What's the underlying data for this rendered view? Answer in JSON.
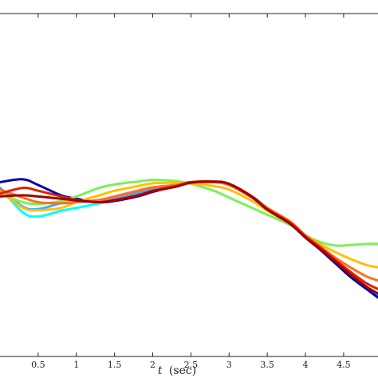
{
  "chart_data": {
    "type": "line",
    "xlabel_symbol": "t",
    "xlabel_unit": "(sec)",
    "xlim": [
      0.0,
      4.95
    ],
    "ylim": [
      -3.0,
      3.0
    ],
    "xticks": [
      "0.5",
      "1",
      "1.5",
      "2",
      "2.5",
      "3",
      "3.5",
      "4",
      "4.5"
    ],
    "x": [
      0.0,
      0.3,
      0.5,
      0.8,
      1.0,
      1.3,
      1.5,
      1.8,
      2.0,
      2.3,
      2.5,
      2.8,
      3.0,
      3.3,
      3.5,
      3.8,
      4.0,
      4.2,
      4.4,
      4.6,
      4.8,
      4.95
    ],
    "series": [
      {
        "color": "#00ffff",
        "values": [
          -0.05,
          -0.48,
          -0.55,
          -0.45,
          -0.4,
          -0.32,
          -0.25,
          -0.15,
          -0.08,
          0.0,
          0.05,
          0.05,
          0.0,
          -0.2,
          -0.4,
          -0.65,
          -0.9,
          -1.12,
          -1.35,
          -1.58,
          -1.78,
          -1.93
        ]
      },
      {
        "color": "#40a8ff",
        "values": [
          -0.05,
          -0.38,
          -0.42,
          -0.32,
          -0.3,
          -0.28,
          -0.24,
          -0.14,
          -0.08,
          0.0,
          0.05,
          0.05,
          0.0,
          -0.2,
          -0.4,
          -0.65,
          -0.9,
          -1.12,
          -1.35,
          -1.58,
          -1.78,
          -1.93
        ]
      },
      {
        "color": "#0000aa",
        "values": [
          0.05,
          0.1,
          0.0,
          -0.18,
          -0.24,
          -0.3,
          -0.28,
          -0.2,
          -0.12,
          -0.02,
          0.04,
          0.05,
          0.0,
          -0.22,
          -0.42,
          -0.68,
          -0.92,
          -1.14,
          -1.38,
          -1.62,
          -1.82,
          -1.97
        ]
      },
      {
        "color": "#7cf05a",
        "values": [
          -0.15,
          -0.3,
          -0.33,
          -0.28,
          -0.2,
          -0.05,
          0.01,
          0.06,
          0.09,
          0.07,
          0.02,
          -0.1,
          -0.22,
          -0.4,
          -0.52,
          -0.7,
          -0.88,
          -1.0,
          -1.06,
          -1.05,
          -1.03,
          -1.03
        ]
      },
      {
        "color": "#ffc000",
        "values": [
          -0.1,
          -0.4,
          -0.44,
          -0.4,
          -0.3,
          -0.18,
          -0.1,
          -0.02,
          0.03,
          0.04,
          0.03,
          -0.02,
          -0.08,
          -0.28,
          -0.45,
          -0.68,
          -0.88,
          -1.04,
          -1.18,
          -1.3,
          -1.4,
          -1.44
        ]
      },
      {
        "color": "#ff7020",
        "values": [
          -0.08,
          -0.22,
          -0.3,
          -0.32,
          -0.3,
          -0.26,
          -0.2,
          -0.1,
          -0.04,
          0.0,
          0.04,
          0.05,
          0.0,
          -0.22,
          -0.4,
          -0.64,
          -0.88,
          -1.08,
          -1.28,
          -1.45,
          -1.6,
          -1.67
        ]
      },
      {
        "color": "#e02000",
        "values": [
          -0.15,
          -0.05,
          -0.1,
          -0.2,
          -0.26,
          -0.3,
          -0.26,
          -0.18,
          -0.1,
          -0.02,
          0.05,
          0.06,
          0.02,
          -0.2,
          -0.42,
          -0.66,
          -0.9,
          -1.1,
          -1.32,
          -1.53,
          -1.72,
          -1.82
        ]
      },
      {
        "color": "#a00000",
        "values": [
          -0.2,
          -0.18,
          -0.2,
          -0.24,
          -0.27,
          -0.3,
          -0.27,
          -0.19,
          -0.11,
          -0.03,
          0.04,
          0.06,
          0.02,
          -0.21,
          -0.43,
          -0.68,
          -0.92,
          -1.13,
          -1.35,
          -1.58,
          -1.78,
          -1.9
        ]
      }
    ]
  }
}
